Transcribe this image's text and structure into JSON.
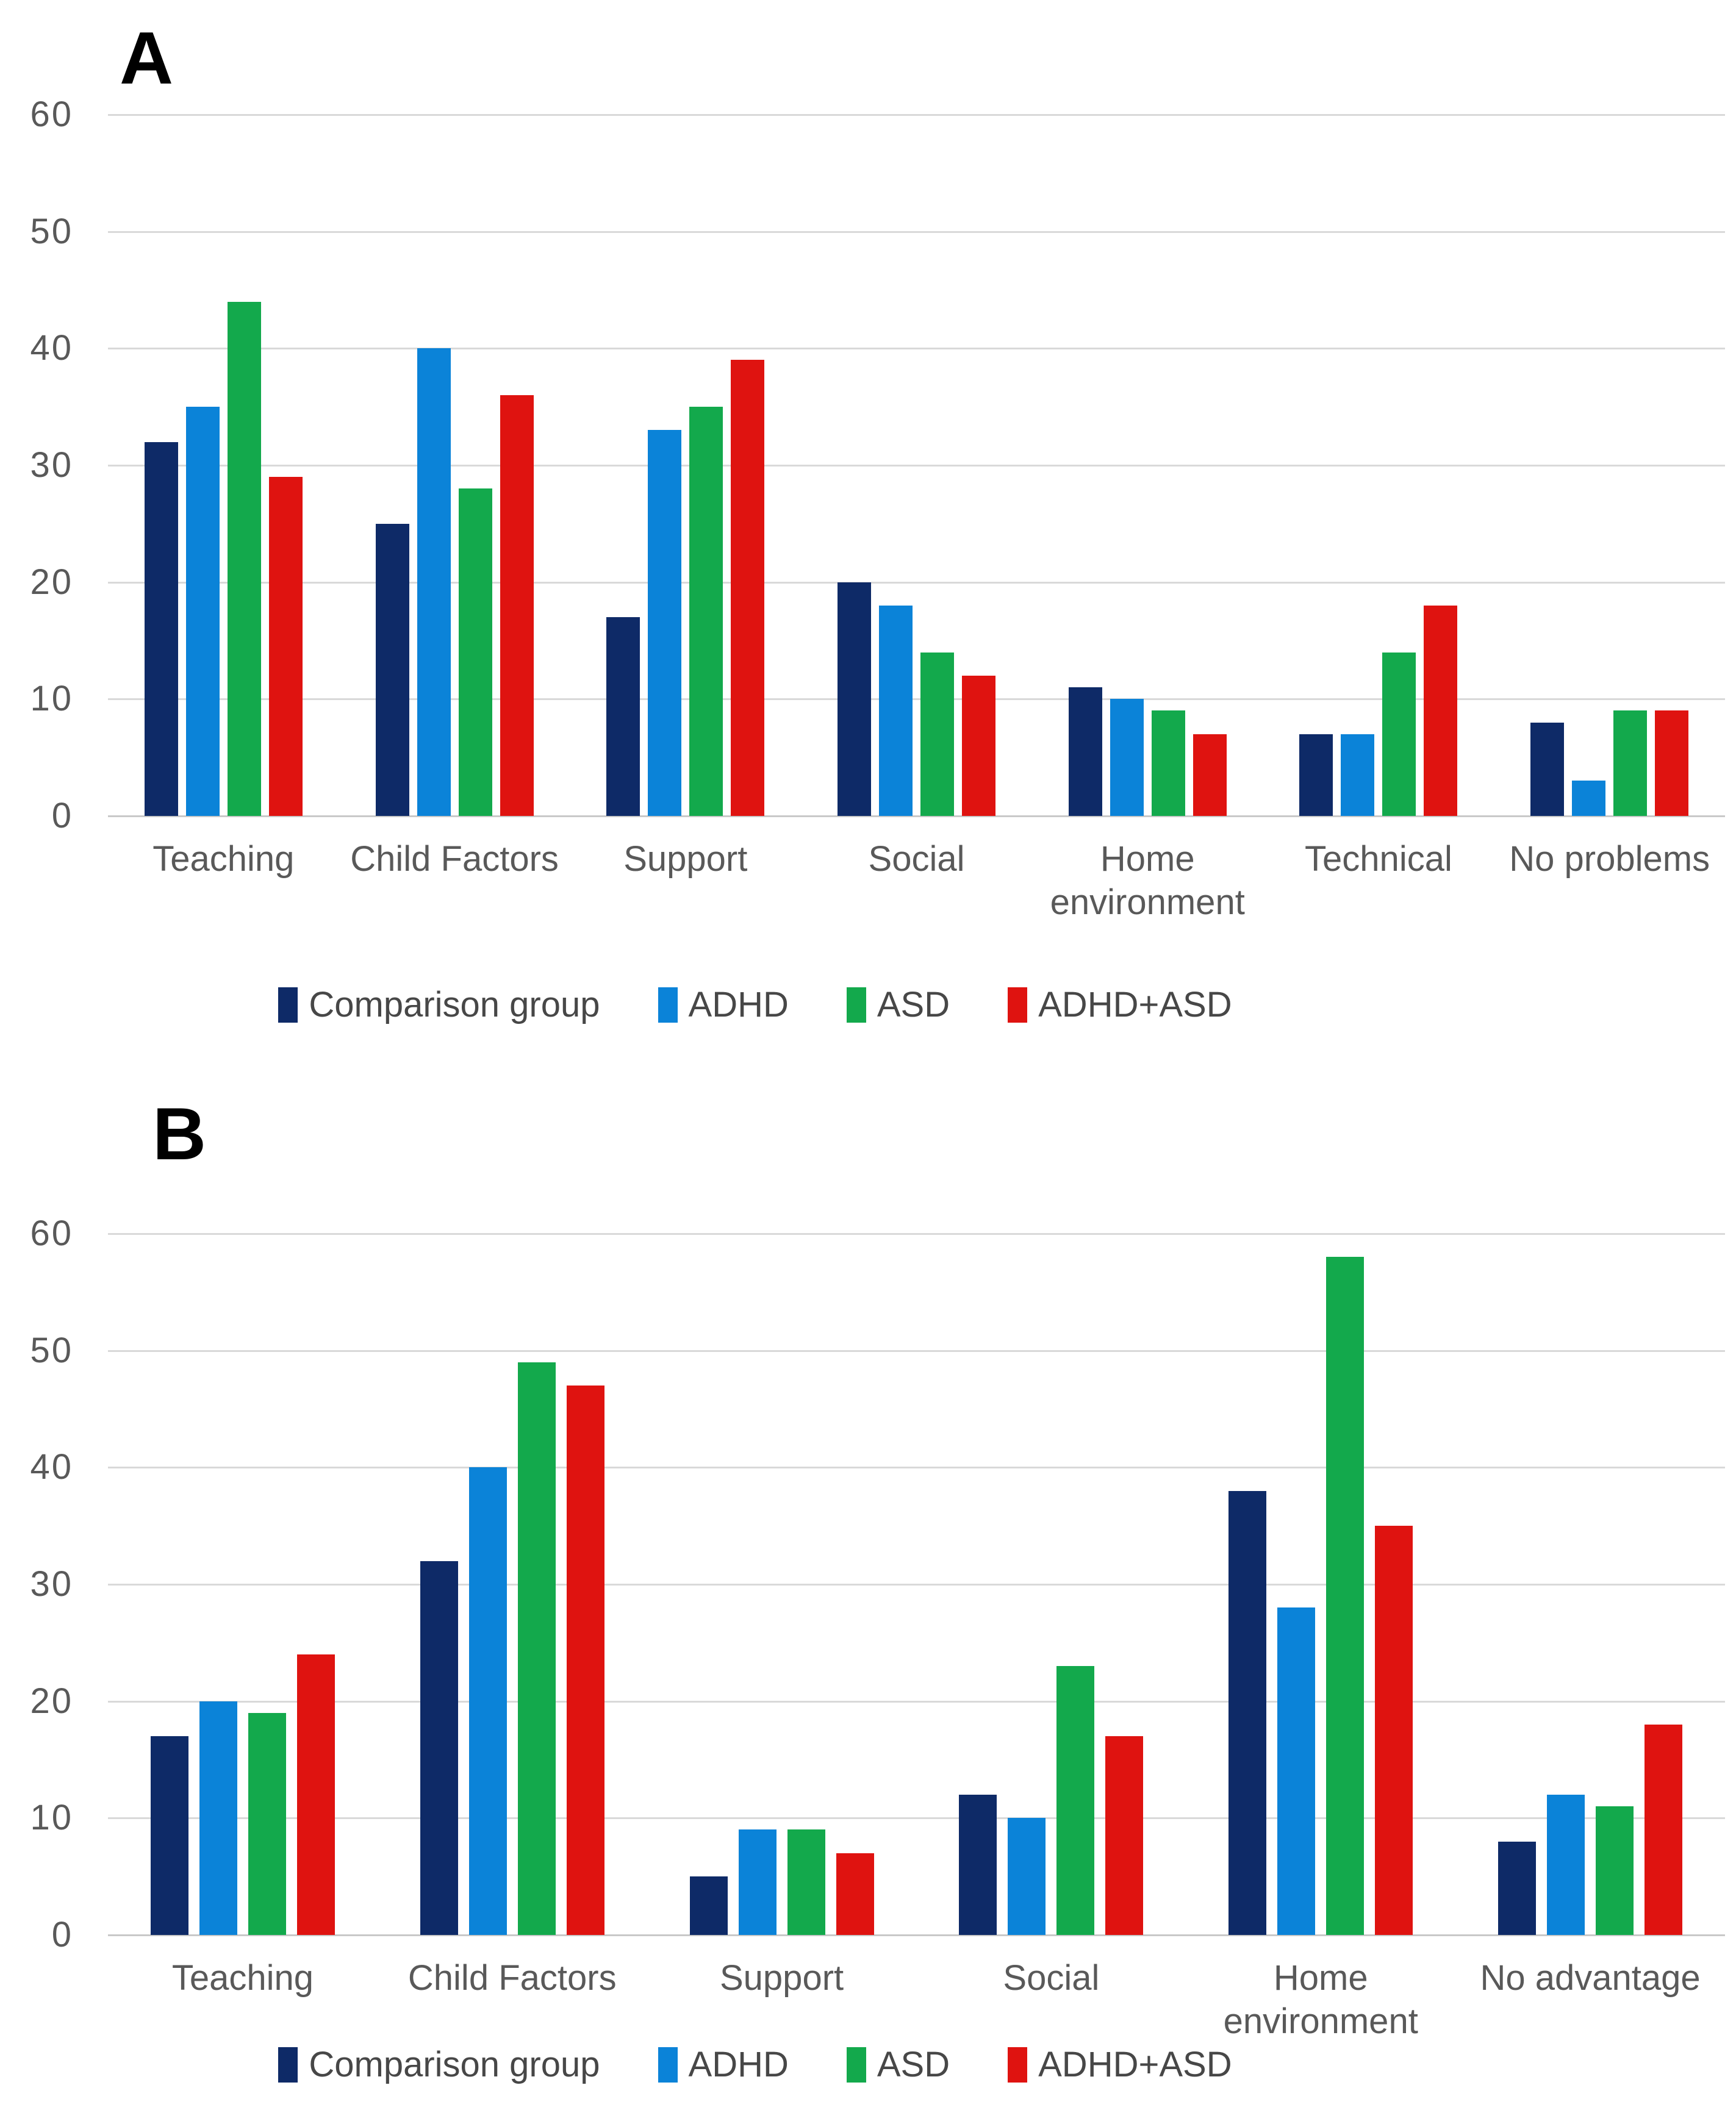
{
  "styles": {
    "background": "#ffffff",
    "tick_color": "#595959",
    "category_color": "#595959",
    "legend_text_color": "#474747",
    "gridline_color": "#d9d9d9",
    "panel_label_color": "#000000",
    "series_colors": {
      "comparison_group": "#0e2a67",
      "adhd": "#0b83d8",
      "asd": "#13a94c",
      "adhd_asd": "#df1310"
    }
  },
  "legend": {
    "items": [
      "Comparison group",
      "ADHD",
      "ASD",
      "ADHD+ASD"
    ]
  },
  "chart_data": [
    {
      "type": "bar",
      "panel_label": "A",
      "title": "",
      "xlabel": "",
      "ylabel": "",
      "ylim": [
        0,
        60
      ],
      "y_ticks": [
        60,
        50,
        40,
        30,
        20,
        10,
        0
      ],
      "grid": true,
      "legend_position": "bottom",
      "categories": [
        "Teaching",
        "Child Factors",
        "Support",
        "Social",
        "Home environment",
        "Technical",
        "No problems"
      ],
      "series": [
        {
          "name": "Comparison group",
          "color": "#0e2a67",
          "values": [
            32,
            25,
            17,
            20,
            11,
            7,
            8
          ]
        },
        {
          "name": "ADHD",
          "color": "#0b83d8",
          "values": [
            35,
            40,
            33,
            18,
            10,
            7,
            3
          ]
        },
        {
          "name": "ASD",
          "color": "#13a94c",
          "values": [
            44,
            28,
            35,
            14,
            9,
            14,
            9
          ]
        },
        {
          "name": "ADHD+ASD",
          "color": "#df1310",
          "values": [
            29,
            36,
            39,
            12,
            7,
            18,
            9
          ]
        }
      ]
    },
    {
      "type": "bar",
      "panel_label": "B",
      "title": "",
      "xlabel": "",
      "ylabel": "",
      "ylim": [
        0,
        60
      ],
      "y_ticks": [
        60,
        50,
        40,
        30,
        20,
        10,
        0
      ],
      "grid": true,
      "legend_position": "bottom",
      "categories": [
        "Teaching",
        "Child Factors",
        "Support",
        "Social",
        "Home environment",
        "No advantage"
      ],
      "series": [
        {
          "name": "Comparison group",
          "color": "#0e2a67",
          "values": [
            17,
            32,
            5,
            12,
            38,
            8
          ]
        },
        {
          "name": "ADHD",
          "color": "#0b83d8",
          "values": [
            20,
            40,
            9,
            10,
            28,
            12
          ]
        },
        {
          "name": "ASD",
          "color": "#13a94c",
          "values": [
            19,
            49,
            9,
            23,
            58,
            11
          ]
        },
        {
          "name": "ADHD+ASD",
          "color": "#df1310",
          "values": [
            24,
            47,
            7,
            17,
            35,
            18
          ]
        }
      ]
    }
  ]
}
